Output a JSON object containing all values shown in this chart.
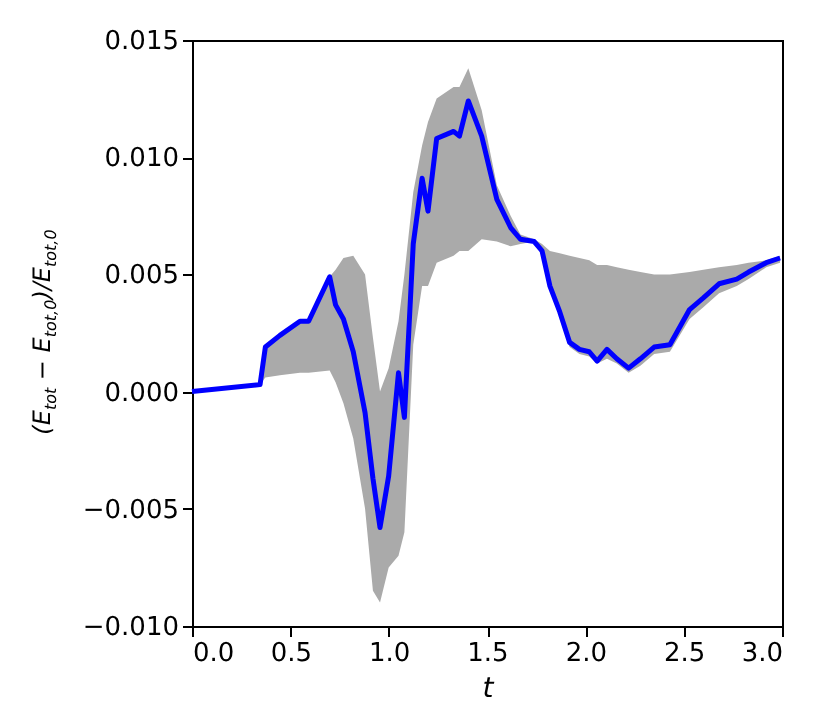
{
  "chart_data": {
    "type": "line",
    "xlabel": "t",
    "ylabel": "(E$_{tot}$ − E$_{tot,0}$)/E$_{tot,0}$",
    "xlim": [
      0.0,
      3.0
    ],
    "ylim": [
      -0.01,
      0.015
    ],
    "xticks": [
      {
        "value": 0,
        "label": "0.0"
      },
      {
        "value": 0.5,
        "label": "0.5"
      },
      {
        "value": 1,
        "label": "1.0"
      },
      {
        "value": 1.5,
        "label": "1.5"
      },
      {
        "value": 2,
        "label": "2.0"
      },
      {
        "value": 2.5,
        "label": "2.5"
      },
      {
        "value": 3,
        "label": "3.0"
      }
    ],
    "yticks": [
      {
        "value": -0.01,
        "label": "−0.010"
      },
      {
        "value": -0.005,
        "label": "−0.005"
      },
      {
        "value": 0,
        "label": "0.000"
      },
      {
        "value": 0.005,
        "label": "0.005"
      },
      {
        "value": 0.01,
        "label": "0.010"
      },
      {
        "value": 0.015,
        "label": "0.015"
      }
    ],
    "grid": false,
    "marker": "none",
    "line_style": "solid",
    "series": [
      {
        "color": "#0000ff",
        "x": [
          0,
          0.346,
          0.373,
          0.447,
          0.549,
          0.593,
          0.7,
          0.73,
          0.77,
          0.82,
          0.88,
          0.92,
          0.956,
          1.0,
          1.05,
          1.08,
          1.125,
          1.17,
          1.2,
          1.244,
          1.33,
          1.36,
          1.405,
          1.473,
          1.55,
          1.62,
          1.67,
          1.74,
          1.78,
          1.82,
          1.87,
          1.92,
          1.97,
          2.02,
          2.06,
          2.11,
          2.16,
          2.22,
          2.28,
          2.35,
          2.43,
          2.53,
          2.6,
          2.68,
          2.77,
          2.83,
          2.92,
          2.99
        ],
        "values": [
          0,
          0.0003,
          0.0019,
          0.0024,
          0.003,
          0.003,
          0.0049,
          0.0037,
          0.0031,
          0.0017,
          -0.0009,
          -0.0037,
          -0.0058,
          -0.0036,
          0.0008,
          -0.0011,
          0.0063,
          0.0091,
          0.0077,
          0.0108,
          0.0111,
          0.0109,
          0.0124,
          0.0109,
          0.0082,
          0.007,
          0.0065,
          0.0064,
          0.006,
          0.0045,
          0.0034,
          0.0021,
          0.0018,
          0.0017,
          0.0013,
          0.0018,
          0.0014,
          0.001,
          0.0014,
          0.0019,
          0.002,
          0.0035,
          0.004,
          0.0046,
          0.0048,
          0.0051,
          0.0055,
          0.0057
        ],
        "lower": [
          0,
          0.0003,
          0.0006,
          0.0007,
          0.0008,
          0.0008,
          0.0009,
          0.0004,
          -0.0005,
          -0.002,
          -0.005,
          -0.0085,
          -0.009,
          -0.0075,
          -0.007,
          -0.006,
          0.002,
          0.0045,
          0.0045,
          0.0055,
          0.0058,
          0.006,
          0.006,
          0.0065,
          0.0064,
          0.0062,
          0.0063,
          0.0064,
          0.0058,
          0.0043,
          0.0032,
          0.0019,
          0.0016,
          0.0015,
          0.0012,
          0.0014,
          0.0012,
          0.0008,
          0.0011,
          0.0016,
          0.0017,
          0.0031,
          0.0036,
          0.0042,
          0.0045,
          0.0048,
          0.0053,
          0.0055
        ],
        "upper": [
          0,
          0.0003,
          0.0019,
          0.0024,
          0.003,
          0.003,
          0.0049,
          0.0052,
          0.0057,
          0.0058,
          0.005,
          0.0023,
          0.0,
          0.001,
          0.003,
          0.005,
          0.0085,
          0.0105,
          0.0115,
          0.0125,
          0.013,
          0.013,
          0.0138,
          0.012,
          0.0088,
          0.0075,
          0.0067,
          0.0065,
          0.0063,
          0.006,
          0.0059,
          0.0058,
          0.0057,
          0.0056,
          0.0054,
          0.0054,
          0.0053,
          0.0052,
          0.0051,
          0.005,
          0.005,
          0.0051,
          0.0052,
          0.0053,
          0.0054,
          0.0055,
          0.0056,
          0.0058
        ]
      }
    ]
  }
}
